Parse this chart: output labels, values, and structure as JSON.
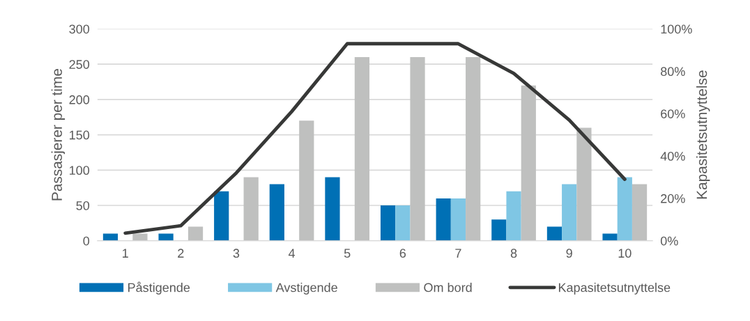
{
  "chart_data": {
    "type": "bar",
    "categories": [
      "1",
      "2",
      "3",
      "4",
      "5",
      "6",
      "7",
      "8",
      "9",
      "10"
    ],
    "series": [
      {
        "name": "Påstigende",
        "color": "#0070b5",
        "values": [
          10,
          10,
          70,
          80,
          90,
          50,
          60,
          30,
          20,
          10
        ]
      },
      {
        "name": "Avstigende",
        "color": "#7fc6e4",
        "values": [
          0,
          0,
          0,
          0,
          0,
          50,
          60,
          70,
          80,
          90
        ]
      },
      {
        "name": "Om bord",
        "color": "#bfc0bf",
        "values": [
          10,
          20,
          90,
          170,
          260,
          260,
          260,
          220,
          160,
          80
        ]
      },
      {
        "name": "Kapasitetsutnyttelse",
        "type": "line",
        "axis": "y2",
        "color": "#373837",
        "values": [
          3.6,
          7.1,
          32,
          61,
          93,
          93,
          93,
          79,
          57,
          29
        ]
      }
    ],
    "ylabel": "Passasjerer per time",
    "y2label": "Kapasitetsutnyttelse",
    "ylim": [
      0,
      300
    ],
    "yticks": [
      0,
      50,
      100,
      150,
      200,
      250,
      300
    ],
    "y2lim": [
      0,
      100
    ],
    "y2ticks": [
      {
        "value": 0,
        "label": "0%"
      },
      {
        "value": 20,
        "label": "20%"
      },
      {
        "value": 40,
        "label": "40%"
      },
      {
        "value": 60,
        "label": "60%"
      },
      {
        "value": 80,
        "label": "80%"
      },
      {
        "value": 100,
        "label": "100%"
      }
    ],
    "grid": "y",
    "legend": "bottom",
    "marker": "none",
    "line_style": "solid"
  }
}
